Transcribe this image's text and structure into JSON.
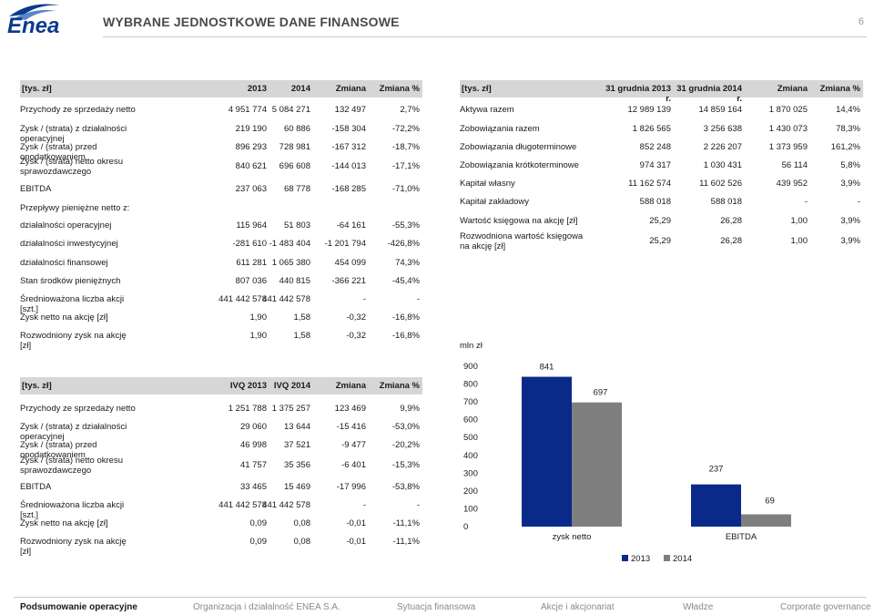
{
  "header": {
    "title": "WYBRANE  JEDNOSTKOWE DANE FINANSOWE",
    "page_number": "6",
    "logo_text": "Enea"
  },
  "table_annual": {
    "headers": [
      "[tys. zł]",
      "2013",
      "2014",
      "Zmiana",
      "Zmiana %"
    ],
    "rows": [
      [
        "Przychody ze sprzedaży netto",
        "4 951 774",
        "5 084 271",
        "132 497",
        "2,7%"
      ],
      [
        "Zysk / (strata) z działalności operacyjnej",
        "219 190",
        "60 886",
        "-158 304",
        "-72,2%"
      ],
      [
        "Zysk / (strata) przed opodatkowaniem",
        "896 293",
        "728 981",
        "-167 312",
        "-18,7%"
      ],
      [
        "Zysk / (strata) netto okresu sprawozdawczego",
        "840 621",
        "696 608",
        "-144 013",
        "-17,1%"
      ],
      [
        "EBITDA",
        "237 063",
        "68 778",
        "-168 285",
        "-71,0%"
      ],
      [
        "Przepływy pieniężne netto z:",
        "",
        "",
        "",
        ""
      ],
      [
        "działalności operacyjnej",
        "115 964",
        "51 803",
        "-64 161",
        "-55,3%"
      ],
      [
        "działalności inwestycyjnej",
        "-281 610",
        "-1 483 404",
        "-1 201 794",
        "-426,8%"
      ],
      [
        "działalności finansowej",
        "611 281",
        "1 065 380",
        "454 099",
        "74,3%"
      ],
      [
        "Stan środków pieniężnych",
        "807 036",
        "440 815",
        "-366 221",
        "-45,4%"
      ],
      [
        "Średnioważona liczba akcji [szt.]",
        "441 442 578",
        "441 442 578",
        "-",
        "-"
      ],
      [
        "Zysk netto na akcję [zł]",
        "1,90",
        "1,58",
        "-0,32",
        "-16,8%"
      ],
      [
        "Rozwodniony zysk na akcję [zł]",
        "1,90",
        "1,58",
        "-0,32",
        "-16,8%"
      ]
    ]
  },
  "table_balance": {
    "headers": [
      "[tys. zł]",
      "31 grudnia 2013 r.",
      "31 grudnia 2014 r.",
      "Zmiana",
      "Zmiana %"
    ],
    "rows": [
      [
        "Aktywa razem",
        "12 989 139",
        "14 859 164",
        "1 870 025",
        "14,4%"
      ],
      [
        "Zobowiązania razem",
        "1 826 565",
        "3 256 638",
        "1 430 073",
        "78,3%"
      ],
      [
        "Zobowiązania długoterminowe",
        "852 248",
        "2 226 207",
        "1 373 959",
        "161,2%"
      ],
      [
        "Zobowiązania krótkoterminowe",
        "974 317",
        "1 030 431",
        "56 114",
        "5,8%"
      ],
      [
        "Kapitał własny",
        "11 162 574",
        "11 602 526",
        "439 952",
        "3,9%"
      ],
      [
        "Kapitał zakładowy",
        "588 018",
        "588 018",
        "-",
        "-"
      ],
      [
        "Wartość księgowa na akcję [zł]",
        "25,29",
        "26,28",
        "1,00",
        "3,9%"
      ],
      [
        "Rozwodniona wartość księgowa na akcję [zł]",
        "25,29",
        "26,28",
        "1,00",
        "3,9%"
      ]
    ]
  },
  "table_quarter": {
    "headers": [
      "[tys. zł]",
      "IVQ 2013",
      "IVQ 2014",
      "Zmiana",
      "Zmiana %"
    ],
    "rows": [
      [
        "Przychody ze sprzedaży netto",
        "1 251 788",
        "1 375 257",
        "123 469",
        "9,9%"
      ],
      [
        "Zysk / (strata) z działalności operacyjnej",
        "29 060",
        "13 644",
        "-15 416",
        "-53,0%"
      ],
      [
        "Zysk / (strata) przed opodatkowaniem",
        "46 998",
        "37 521",
        "-9 477",
        "-20,2%"
      ],
      [
        "Zysk / (strata) netto okresu sprawozdawczego",
        "41 757",
        "35 356",
        "-6 401",
        "-15,3%"
      ],
      [
        "EBITDA",
        "33 465",
        "15 469",
        "-17 996",
        "-53,8%"
      ],
      [
        "Średnioważona liczba akcji [szt.]",
        "441 442 578",
        "441 442 578",
        "-",
        "-"
      ],
      [
        "Zysk netto na akcję [zł]",
        "0,09",
        "0,08",
        "-0,01",
        "-11,1%"
      ],
      [
        "Rozwodniony zysk na akcję [zł]",
        "0,09",
        "0,08",
        "-0,01",
        "-11,1%"
      ]
    ]
  },
  "chart_data": {
    "type": "bar",
    "ylabel": "mln zł",
    "categories": [
      "zysk netto",
      "EBITDA"
    ],
    "series": [
      {
        "name": "2013",
        "values": [
          841,
          237
        ],
        "color": "#0a2a8a"
      },
      {
        "name": "2014",
        "values": [
          697,
          69
        ],
        "color": "#7f7f7f"
      }
    ],
    "ylim": [
      0,
      900
    ],
    "yticks": [
      "0",
      "100",
      "200",
      "300",
      "400",
      "500",
      "600",
      "700",
      "800",
      "900"
    ],
    "data_labels": [
      [
        "841",
        "237"
      ],
      [
        "697",
        "69"
      ]
    ],
    "grid": false,
    "legend": "bottom"
  },
  "footer": {
    "nav": [
      "Podsumowanie operacyjne",
      "Organizacja i działalność ENEA S.A.",
      "Sytuacja finansowa",
      "Akcje i akcjonariat",
      "Władze",
      "Corporate governance"
    ]
  }
}
